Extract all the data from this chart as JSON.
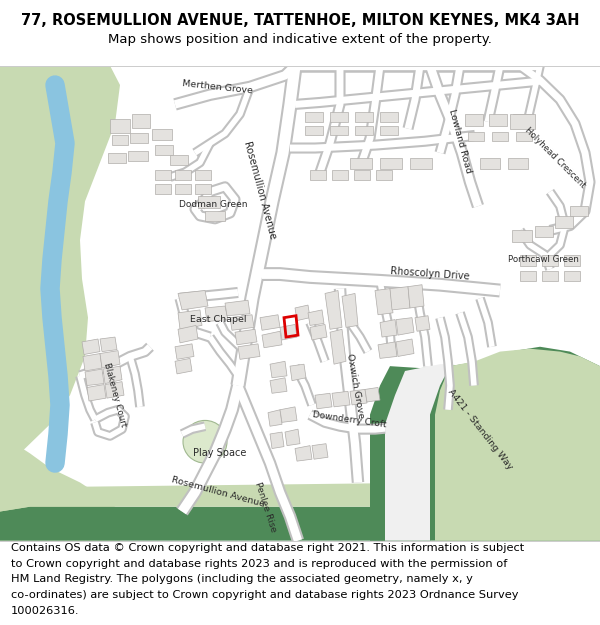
{
  "title_line1": "77, ROSEMULLION AVENUE, TATTENHOE, MILTON KEYNES, MK4 3AH",
  "title_line2": "Map shows position and indicative extent of the property.",
  "footer_lines": [
    "Contains OS data © Crown copyright and database right 2021. This information is subject",
    "to Crown copyright and database rights 2023 and is reproduced with the permission of",
    "HM Land Registry. The polygons (including the associated geometry, namely x, y",
    "co-ordinates) are subject to Crown copyright and database rights 2023 Ordnance Survey",
    "100026316."
  ],
  "bg_color": "#ffffff",
  "map_bg": "#f7f6f3",
  "green_light": "#c8dab2",
  "green_dark": "#4e8a58",
  "green_mid": "#6aac6a",
  "blue_water": "#8ac4e0",
  "road_fill": "#ffffff",
  "road_edge": "#c0c0c0",
  "building_fill": "#e4e2df",
  "building_edge": "#b0adaa",
  "red_box_color": "#dd0000",
  "title_fontsize": 10.5,
  "subtitle_fontsize": 9.5,
  "footer_fontsize": 8.2,
  "label_color": "#2a2a2a",
  "road_label_fontsize": 7.0
}
